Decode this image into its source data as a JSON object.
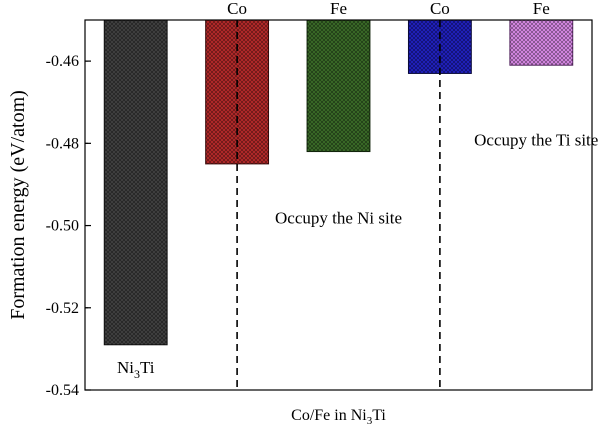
{
  "chart_data": {
    "type": "bar",
    "ylabel": "Formation energy (eV/atom)",
    "xlabel": {
      "base": "Co/Fe in Ni",
      "sub": "3",
      "tail": "Ti"
    },
    "ylim": [
      -0.54,
      -0.45
    ],
    "yticks": [
      -0.46,
      -0.48,
      -0.5,
      -0.52,
      -0.54
    ],
    "ytick_labels": [
      "-0.46",
      "-0.48",
      "-0.50",
      "-0.52",
      "-0.54"
    ],
    "grid": false,
    "bars": [
      {
        "label": "Ni3Ti",
        "label_parts": {
          "base": "Ni",
          "sub": "3",
          "tail": "Ti"
        },
        "label_pos": "below",
        "value": -0.529,
        "color": "#404040",
        "stroke": "#111111"
      },
      {
        "label": "Co",
        "label_pos": "above",
        "value": -0.485,
        "color": "#b52a2a",
        "stroke": "#3a0a0a"
      },
      {
        "label": "Fe",
        "label_pos": "above",
        "value": -0.482,
        "color": "#3a6b28",
        "stroke": "#12260c"
      },
      {
        "label": "Co",
        "label_pos": "above",
        "value": -0.463,
        "color": "#2020c0",
        "stroke": "#0a0a40"
      },
      {
        "label": "Fe",
        "label_pos": "above",
        "value": -0.461,
        "color": "#d889e6",
        "stroke": "#5a2a66"
      }
    ],
    "annotations": [
      {
        "text": "Occupy the Ni site",
        "x": 3.0,
        "y": -0.4995
      },
      {
        "text": "Occupy the Ti site",
        "x": 4.95,
        "y": -0.4805
      }
    ],
    "separators_x": [
      1.5,
      3.5
    ]
  }
}
